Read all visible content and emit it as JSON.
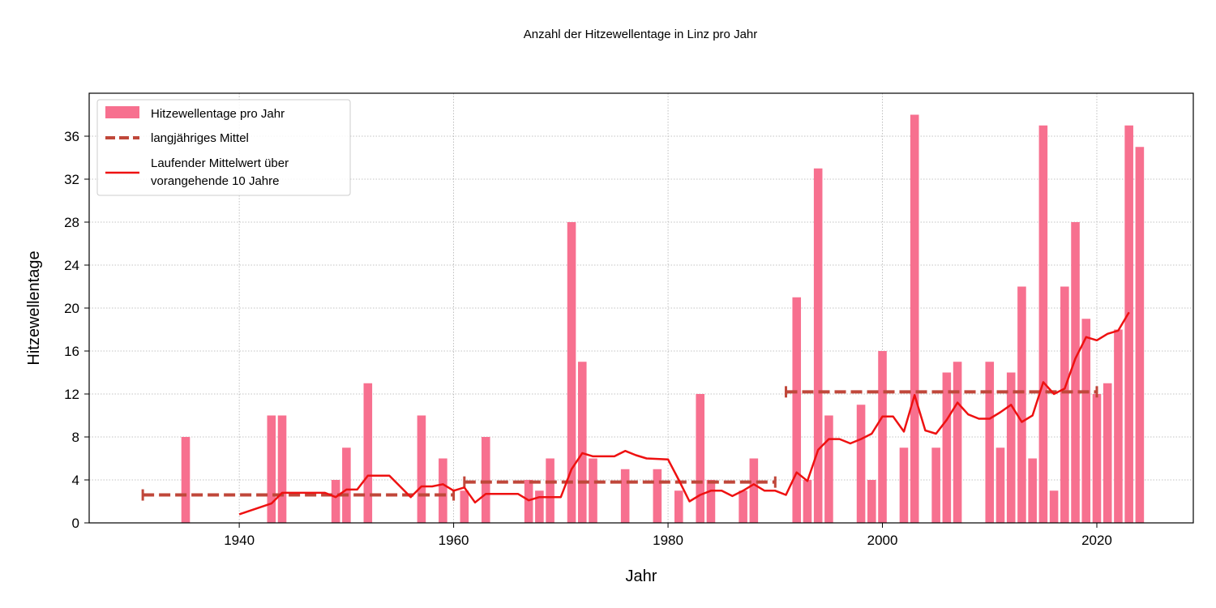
{
  "chart_data": {
    "type": "bar",
    "title": "Anzahl der Hitzewellentage in Linz pro Jahr",
    "xlabel": "Jahr",
    "ylabel": "Hitzewellentage",
    "xlim": [
      1926,
      2029
    ],
    "ylim": [
      0,
      40
    ],
    "x_ticks": [
      1940,
      1960,
      1980,
      2000,
      2020
    ],
    "y_ticks": [
      0,
      4,
      8,
      12,
      16,
      20,
      24,
      28,
      32,
      36
    ],
    "grid": true,
    "legend_position": "top-left",
    "series": [
      {
        "name": "Hitzewellentage pro Jahr",
        "type": "bar",
        "color": "#f7708f",
        "points": [
          [
            1935,
            8
          ],
          [
            1943,
            10
          ],
          [
            1944,
            10
          ],
          [
            1949,
            4
          ],
          [
            1950,
            7
          ],
          [
            1952,
            13
          ],
          [
            1957,
            10
          ],
          [
            1959,
            6
          ],
          [
            1961,
            3
          ],
          [
            1963,
            8
          ],
          [
            1967,
            4
          ],
          [
            1968,
            3
          ],
          [
            1969,
            6
          ],
          [
            1971,
            28
          ],
          [
            1972,
            15
          ],
          [
            1973,
            6
          ],
          [
            1976,
            5
          ],
          [
            1979,
            5
          ],
          [
            1981,
            3
          ],
          [
            1983,
            12
          ],
          [
            1984,
            4
          ],
          [
            1987,
            3
          ],
          [
            1988,
            6
          ],
          [
            1992,
            21
          ],
          [
            1993,
            4
          ],
          [
            1994,
            33
          ],
          [
            1995,
            10
          ],
          [
            1998,
            11
          ],
          [
            1999,
            4
          ],
          [
            2000,
            16
          ],
          [
            2002,
            7
          ],
          [
            2003,
            38
          ],
          [
            2005,
            7
          ],
          [
            2006,
            14
          ],
          [
            2007,
            15
          ],
          [
            2010,
            15
          ],
          [
            2011,
            7
          ],
          [
            2012,
            14
          ],
          [
            2013,
            22
          ],
          [
            2014,
            6
          ],
          [
            2015,
            37
          ],
          [
            2016,
            3
          ],
          [
            2017,
            22
          ],
          [
            2018,
            28
          ],
          [
            2019,
            19
          ],
          [
            2020,
            12
          ],
          [
            2021,
            13
          ],
          [
            2022,
            18
          ],
          [
            2023,
            37
          ],
          [
            2024,
            35
          ]
        ]
      },
      {
        "name": "langjähriges Mittel",
        "type": "segments",
        "color": "#c0473a",
        "segments": [
          {
            "x": [
              1931,
              1960
            ],
            "y": 2.6
          },
          {
            "x": [
              1961,
              1990
            ],
            "y": 3.8
          },
          {
            "x": [
              1991,
              2020
            ],
            "y": 12.2
          }
        ]
      },
      {
        "name": "Laufender Mittelwert über vorangehende 10 Jahre",
        "type": "line",
        "color": "#ee1111",
        "points": [
          [
            1940,
            0.8
          ],
          [
            1943,
            1.8
          ],
          [
            1944,
            2.8
          ],
          [
            1948,
            2.8
          ],
          [
            1949,
            2.4
          ],
          [
            1950,
            3.1
          ],
          [
            1951,
            3.1
          ],
          [
            1952,
            4.4
          ],
          [
            1954,
            4.4
          ],
          [
            1956,
            2.4
          ],
          [
            1957,
            3.4
          ],
          [
            1958,
            3.4
          ],
          [
            1959,
            3.6
          ],
          [
            1960,
            3.0
          ],
          [
            1961,
            3.3
          ],
          [
            1962,
            1.9
          ],
          [
            1963,
            2.7
          ],
          [
            1966,
            2.7
          ],
          [
            1967,
            2.1
          ],
          [
            1968,
            2.4
          ],
          [
            1970,
            2.4
          ],
          [
            1971,
            5.0
          ],
          [
            1972,
            6.5
          ],
          [
            1973,
            6.2
          ],
          [
            1975,
            6.2
          ],
          [
            1976,
            6.7
          ],
          [
            1977,
            6.3
          ],
          [
            1978,
            6.0
          ],
          [
            1980,
            5.9
          ],
          [
            1981,
            4.0
          ],
          [
            1982,
            2.0
          ],
          [
            1983,
            2.6
          ],
          [
            1984,
            3.0
          ],
          [
            1985,
            3.0
          ],
          [
            1986,
            2.5
          ],
          [
            1987,
            3.0
          ],
          [
            1988,
            3.6
          ],
          [
            1989,
            3.0
          ],
          [
            1990,
            3.0
          ],
          [
            1991,
            2.6
          ],
          [
            1992,
            4.7
          ],
          [
            1993,
            3.9
          ],
          [
            1994,
            6.8
          ],
          [
            1995,
            7.8
          ],
          [
            1996,
            7.8
          ],
          [
            1997,
            7.4
          ],
          [
            1998,
            7.8
          ],
          [
            1999,
            8.3
          ],
          [
            2000,
            9.9
          ],
          [
            2001,
            9.9
          ],
          [
            2002,
            8.5
          ],
          [
            2003,
            11.9
          ],
          [
            2004,
            8.6
          ],
          [
            2005,
            8.3
          ],
          [
            2006,
            9.6
          ],
          [
            2007,
            11.2
          ],
          [
            2008,
            10.1
          ],
          [
            2009,
            9.7
          ],
          [
            2010,
            9.7
          ],
          [
            2011,
            10.3
          ],
          [
            2012,
            11.0
          ],
          [
            2013,
            9.4
          ],
          [
            2014,
            10.0
          ],
          [
            2015,
            13.1
          ],
          [
            2016,
            12.0
          ],
          [
            2017,
            12.5
          ],
          [
            2018,
            15.3
          ],
          [
            2019,
            17.3
          ],
          [
            2020,
            17.0
          ],
          [
            2021,
            17.6
          ],
          [
            2022,
            17.9
          ],
          [
            2023,
            19.6
          ]
        ]
      }
    ]
  },
  "legend": {
    "bar_label": "Hitzewellentage pro Jahr",
    "mean_label": "langjähriges Mittel",
    "running_label_line1": "Laufender Mittelwert über",
    "running_label_line2": "vorangehende 10 Jahre"
  }
}
